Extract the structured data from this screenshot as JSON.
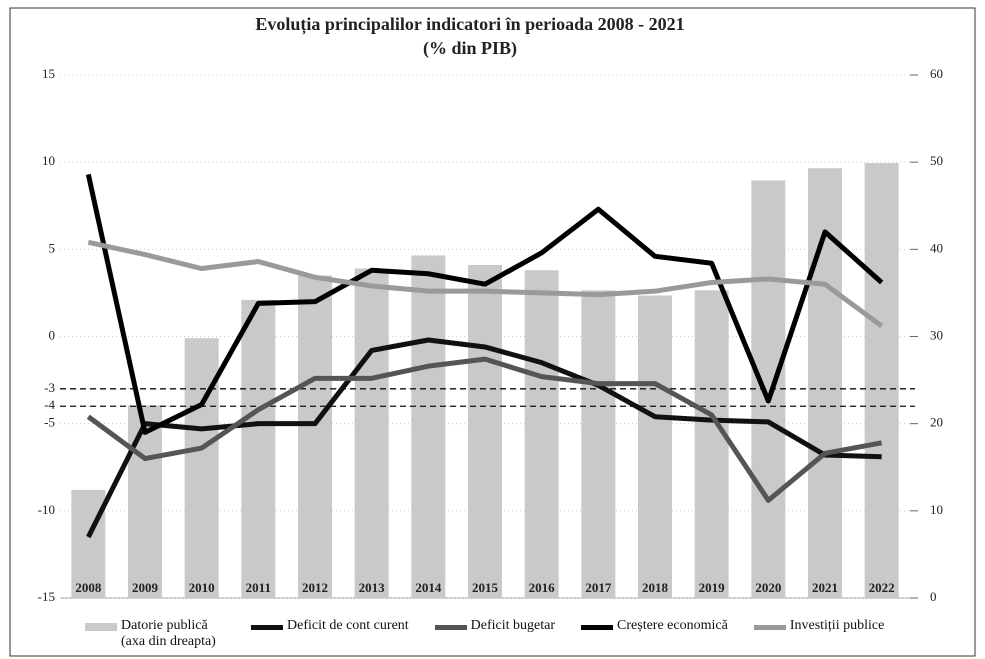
{
  "chart_data": {
    "type": "bar-line",
    "title": "Evoluția principalilor indicatori în perioada 2008 - 2021",
    "subtitle": "(% din PIB)",
    "categories": [
      "2008",
      "2009",
      "2010",
      "2011",
      "2012",
      "2013",
      "2014",
      "2015",
      "2016",
      "2017",
      "2018",
      "2019",
      "2020",
      "2021",
      "2022"
    ],
    "ylim": [
      -15,
      15
    ],
    "yticks": [
      15,
      10,
      5,
      0,
      -3,
      -4,
      -5,
      -10,
      -15
    ],
    "y2lim": [
      0,
      60
    ],
    "y2ticks": [
      0,
      10,
      20,
      30,
      40,
      50,
      60
    ],
    "ref_lines": [
      -3,
      -4
    ],
    "grid": true,
    "series": [
      {
        "name": "Datorie publică (axa din dreapta)",
        "kind": "bar",
        "axis": "y2",
        "color": "#c9c9c9",
        "values": [
          12.4,
          22.1,
          29.8,
          34.2,
          37.0,
          37.8,
          39.3,
          38.2,
          37.6,
          35.3,
          34.7,
          35.3,
          47.9,
          49.3,
          49.9
        ]
      },
      {
        "name": "Deficit de cont curent",
        "kind": "line",
        "color": "#111111",
        "values": [
          -11.5,
          -5.0,
          -5.3,
          -5.0,
          -5.0,
          -0.8,
          -0.2,
          -0.6,
          -1.5,
          -2.8,
          -4.6,
          -4.8,
          -4.9,
          -6.8,
          -6.9
        ]
      },
      {
        "name": "Deficit bugetar",
        "kind": "line",
        "color": "#555555",
        "values": [
          -4.6,
          -7.0,
          -6.4,
          -4.2,
          -2.4,
          -2.4,
          -1.7,
          -1.3,
          -2.3,
          -2.7,
          -2.7,
          -4.5,
          -9.4,
          -6.7,
          -6.1
        ]
      },
      {
        "name": "Creștere economică",
        "kind": "line",
        "color": "#000000",
        "values": [
          9.3,
          -5.5,
          -3.9,
          1.9,
          2.0,
          3.8,
          3.6,
          3.0,
          4.8,
          7.3,
          4.6,
          4.2,
          -3.7,
          6.0,
          3.1
        ]
      },
      {
        "name": "Investiții publice",
        "kind": "line",
        "color": "#9a9a9a",
        "values": [
          5.4,
          4.7,
          3.9,
          4.3,
          3.4,
          2.9,
          2.6,
          2.6,
          2.5,
          2.4,
          2.6,
          3.1,
          3.3,
          3.0,
          0.6
        ]
      }
    ]
  }
}
